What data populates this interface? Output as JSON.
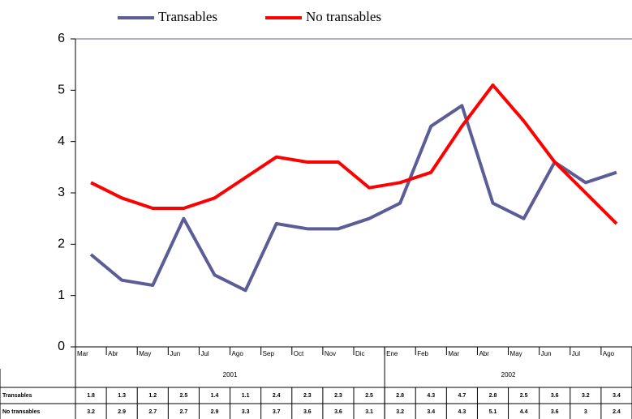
{
  "chart_data": {
    "type": "line",
    "category_groups": [
      {
        "label": "2001",
        "categories": [
          "Mar",
          "Abr",
          "May",
          "Jun",
          "Jul",
          "Ago",
          "Sep",
          "Oct",
          "Nov",
          "Dic"
        ]
      },
      {
        "label": "2002",
        "categories": [
          "Ene",
          "Feb",
          "Mar",
          "Abr",
          "May",
          "Jun",
          "Jul",
          "Ago"
        ]
      }
    ],
    "series": [
      {
        "name": "Transables",
        "color": "#5c5c96",
        "values": [
          1.8,
          1.3,
          1.2,
          2.5,
          1.4,
          1.1,
          2.4,
          2.3,
          2.3,
          2.5,
          2.8,
          4.3,
          4.7,
          2.8,
          2.5,
          3.6,
          3.2,
          3.4
        ]
      },
      {
        "name": "No transables",
        "color": "#ff0000",
        "values": [
          3.2,
          2.9,
          2.7,
          2.7,
          2.9,
          3.3,
          3.7,
          3.6,
          3.6,
          3.1,
          3.2,
          3.4,
          4.3,
          5.1,
          4.4,
          3.6,
          3.0,
          2.4
        ]
      }
    ],
    "ylim": [
      0,
      6
    ],
    "yticks": [
      0,
      1,
      2,
      3,
      4,
      5,
      6
    ]
  }
}
